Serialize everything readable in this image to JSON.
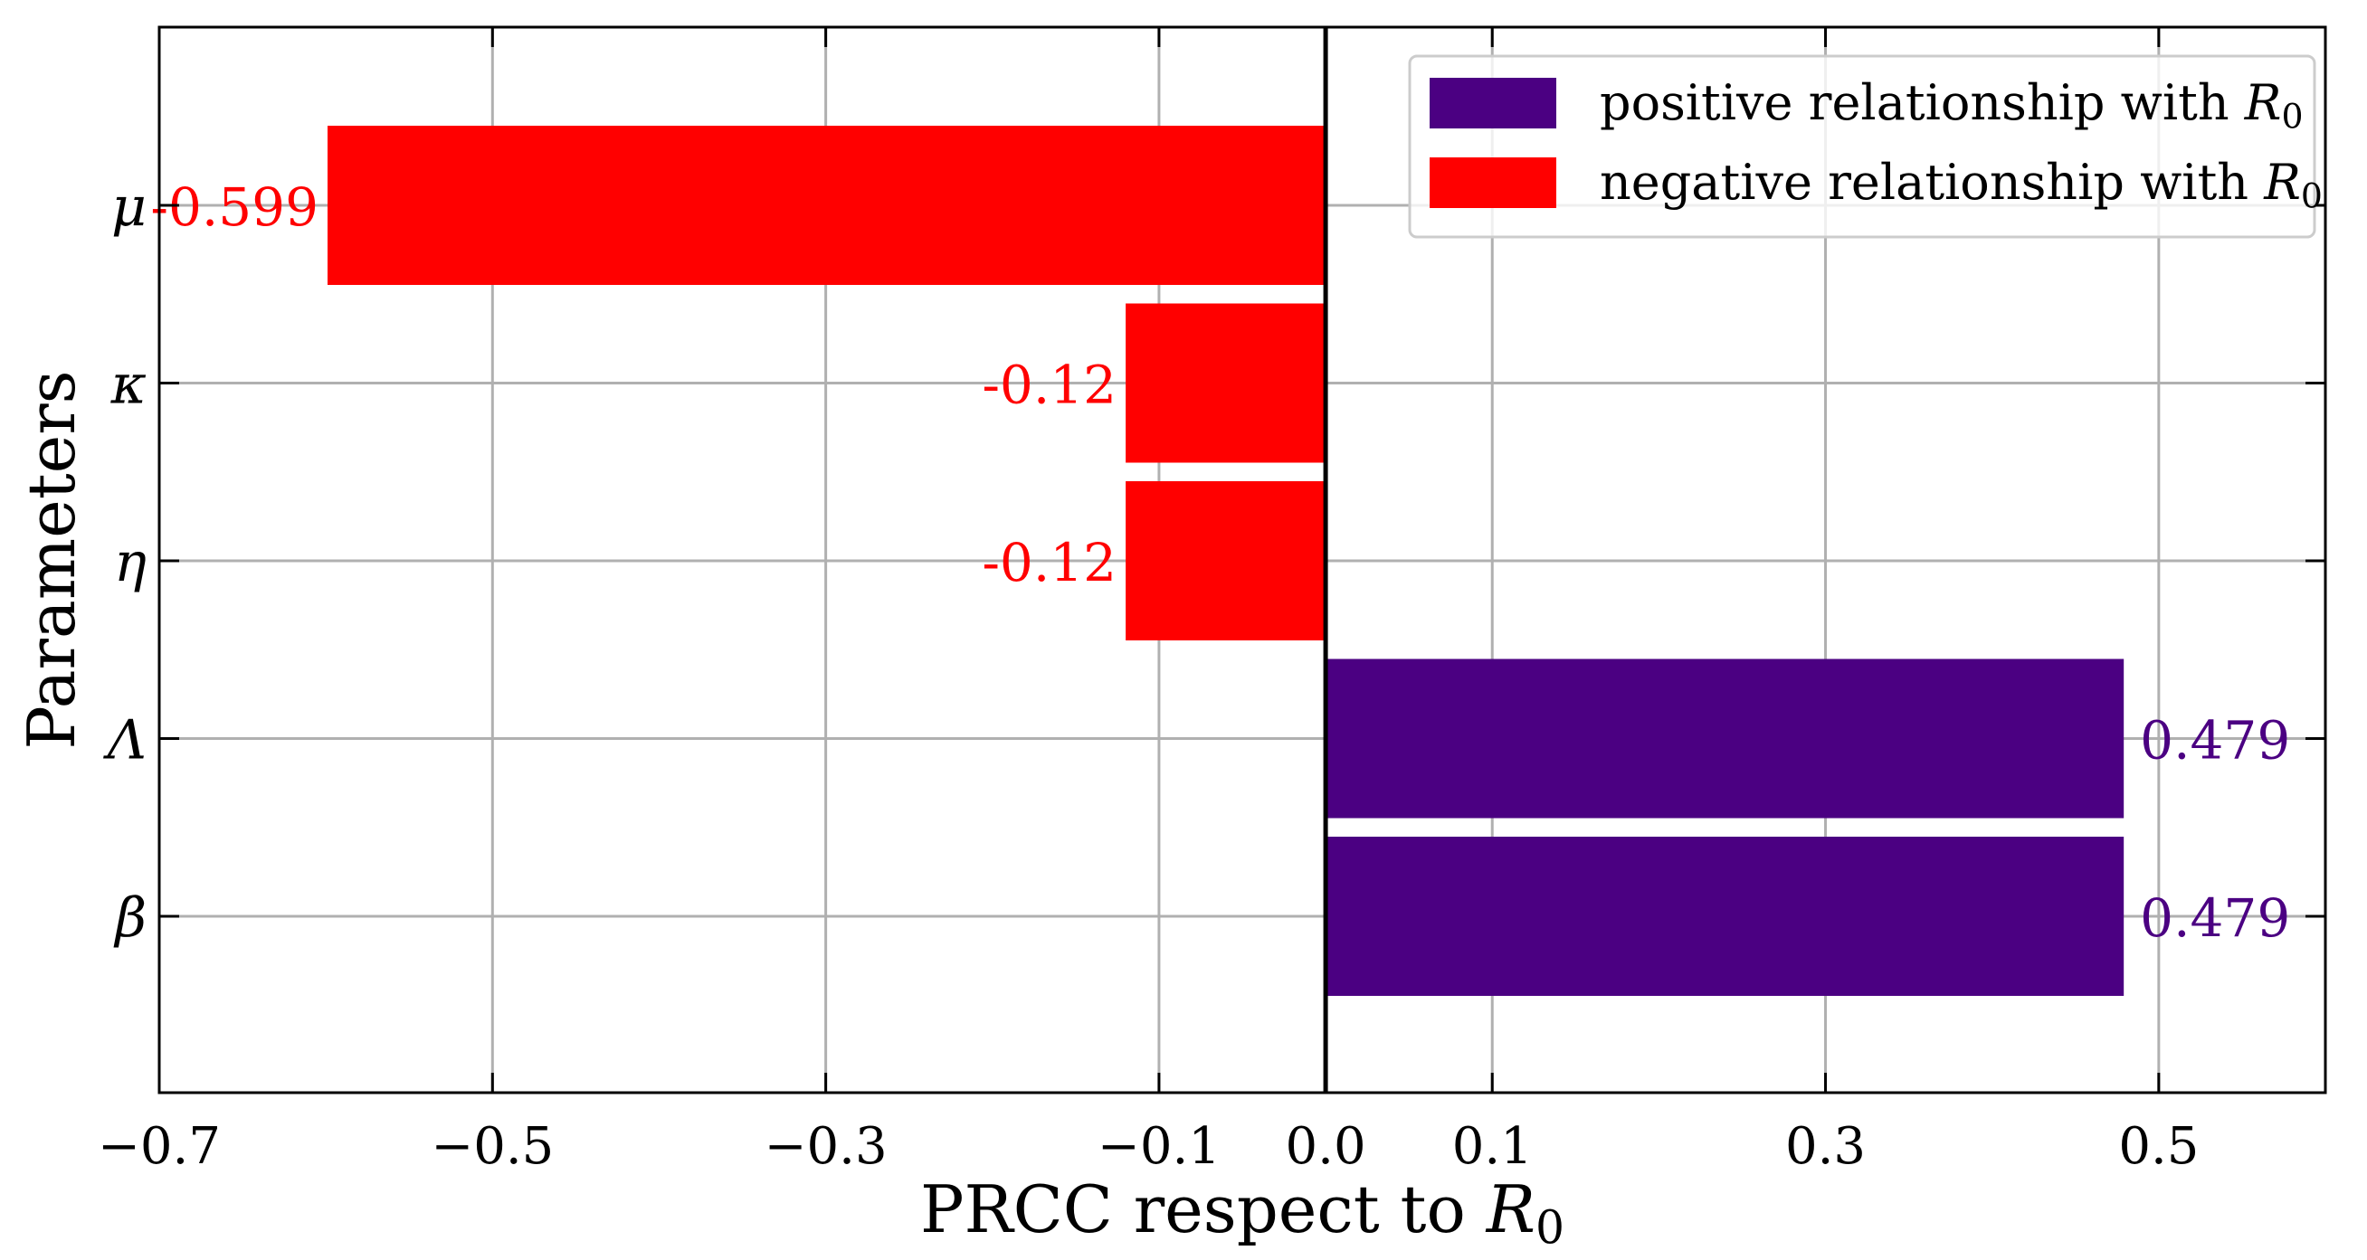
{
  "chart_data": {
    "type": "bar",
    "orientation": "horizontal",
    "title": "",
    "xlabel": "PRCC respect to R0",
    "ylabel": "Parameters",
    "xlim": [
      -0.7,
      0.6
    ],
    "xticks": [
      -0.7,
      -0.5,
      -0.3,
      -0.1,
      0.0,
      0.1,
      0.3,
      0.5
    ],
    "xtick_labels": [
      "−0.7",
      "−0.5",
      "−0.3",
      "−0.1",
      "0.0",
      "0.1",
      "0.3",
      "0.5"
    ],
    "grid": true,
    "categories": [
      "μ",
      "κ",
      "η",
      "Λ",
      "β"
    ],
    "values": [
      -0.599,
      -0.12,
      -0.12,
      0.479,
      0.479
    ],
    "value_labels": [
      "-0.599",
      "-0.12",
      "-0.12",
      "0.479",
      "0.479"
    ],
    "legend": {
      "placement": "top-right",
      "entries": [
        {
          "label": "positive relationship with R0",
          "color": "#4b0082"
        },
        {
          "label": "negative relationship with R0",
          "color": "#ff0000"
        }
      ]
    },
    "colors": {
      "positive": "#4b0082",
      "negative": "#ff0000"
    }
  }
}
